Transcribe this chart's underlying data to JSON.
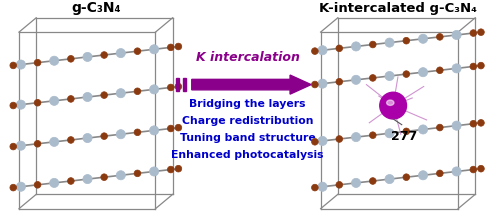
{
  "title_left": "g-C₃N₄",
  "title_right": "K-intercalated g-C₃N₄",
  "arrow_text": "K intercalation",
  "arrow_color": "#8B008B",
  "bullet_texts": [
    "Bridging the layers",
    "Charge redistribution",
    "Tuning band structure",
    "Enhanced photocatalysis"
  ],
  "bullet_color": "#0000CC",
  "label_277": "277",
  "bg_color": "#ffffff",
  "box_edge_color": "#888888",
  "n_atom_color": "#aabbcc",
  "c_atom_color": "#8B3A10",
  "k_atom_color": "#AA00AA",
  "k_atom_edge": "#CC55CC",
  "bond_color": "#888888",
  "k_bond_color": "#CC88CC"
}
